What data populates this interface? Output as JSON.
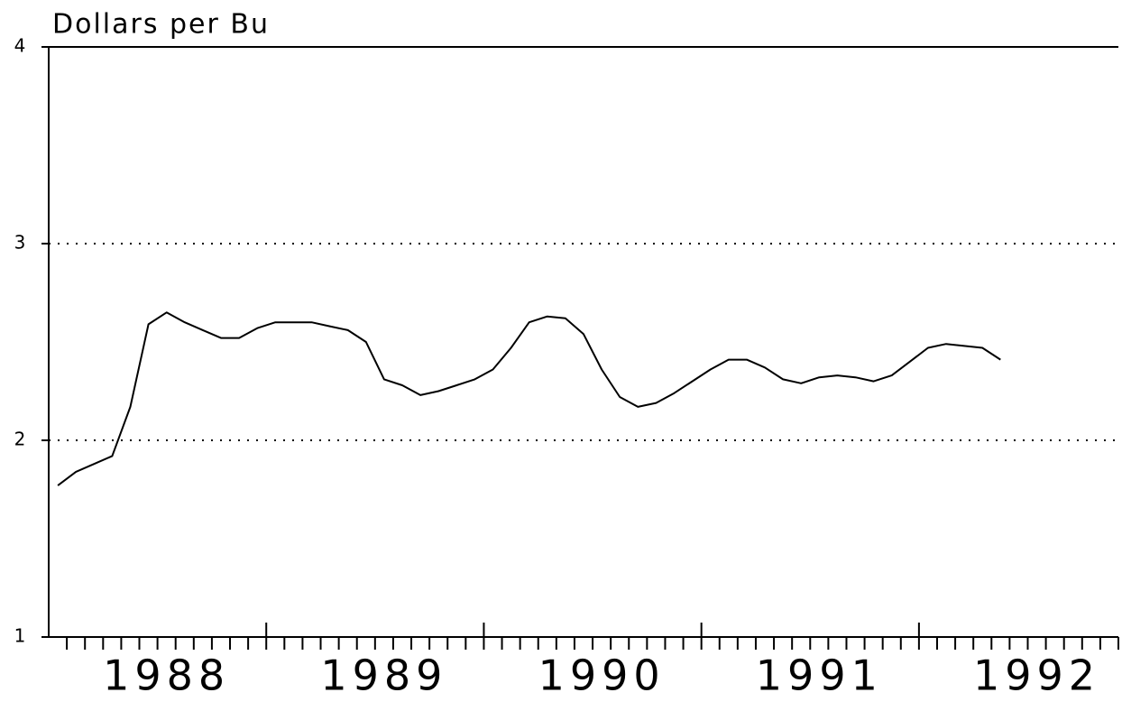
{
  "chart_data": {
    "type": "line",
    "title": "Dollars per Bu",
    "categories": [
      null,
      null,
      null,
      null,
      null,
      null,
      "1988",
      null,
      null,
      null,
      null,
      null,
      null,
      null,
      null,
      null,
      null,
      null,
      "1989",
      null,
      null,
      null,
      null,
      null,
      null,
      null,
      null,
      null,
      null,
      null,
      "1990",
      null,
      null,
      null,
      null,
      null,
      null,
      null,
      null,
      null,
      null,
      null,
      "1991",
      null,
      null,
      null,
      null,
      null,
      null,
      null,
      null,
      null,
      null,
      null,
      "1992",
      null,
      null,
      null,
      null
    ],
    "values": [
      1.77,
      1.84,
      1.88,
      1.92,
      2.17,
      2.59,
      2.65,
      2.6,
      2.56,
      2.52,
      2.52,
      2.57,
      2.6,
      2.6,
      2.6,
      2.58,
      2.56,
      2.5,
      2.31,
      2.28,
      2.23,
      2.25,
      2.28,
      2.31,
      2.36,
      2.47,
      2.6,
      2.63,
      2.62,
      2.54,
      2.36,
      2.22,
      2.17,
      2.19,
      2.24,
      2.3,
      2.36,
      2.41,
      2.41,
      2.37,
      2.31,
      2.29,
      2.32,
      2.33,
      2.32,
      2.3,
      2.33,
      2.4,
      2.47,
      2.49,
      2.48,
      2.47,
      2.41,
      null,
      null,
      null,
      null,
      null,
      null
    ],
    "color": "#000000",
    "ylim": [
      1,
      4
    ],
    "yticks": [
      1,
      2,
      3,
      4
    ],
    "grid": true
  }
}
